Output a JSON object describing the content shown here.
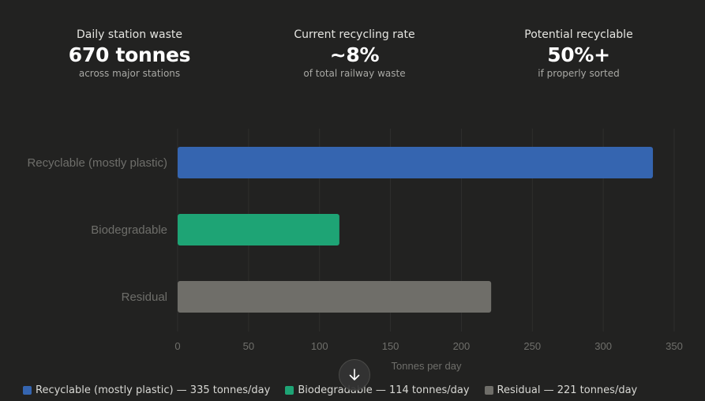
{
  "stats": [
    {
      "label": "Daily station waste",
      "value": "670 tonnes",
      "sub": "across major stations"
    },
    {
      "label": "Current recycling rate",
      "value": "~8%",
      "sub": "of total railway waste"
    },
    {
      "label": "Potential recyclable",
      "value": "50%+",
      "sub": "if properly sorted"
    }
  ],
  "chart_data": {
    "type": "bar",
    "orientation": "horizontal",
    "categories": [
      "Recyclable (mostly plastic)",
      "Biodegradable",
      "Residual"
    ],
    "values": [
      335,
      114,
      221
    ],
    "colors": [
      "#3565b0",
      "#1ea475",
      "#6f6e69"
    ],
    "xlabel": "Tonnes per day",
    "ylabel": "",
    "xlim": [
      0,
      350
    ],
    "xticks": [
      0,
      50,
      100,
      150,
      200,
      250,
      300,
      350
    ],
    "grid": true,
    "legend_position": "bottom"
  },
  "legend": [
    {
      "label": "Recyclable (mostly plastic) — 335 tonnes/day",
      "color": "#3565b0"
    },
    {
      "label": "Biodegradable — 114 tonnes/day",
      "color": "#1ea475"
    },
    {
      "label": "Residual — 221 tonnes/day",
      "color": "#6f6e69"
    }
  ],
  "scroll_button": {
    "icon": "arrow-down-icon"
  }
}
